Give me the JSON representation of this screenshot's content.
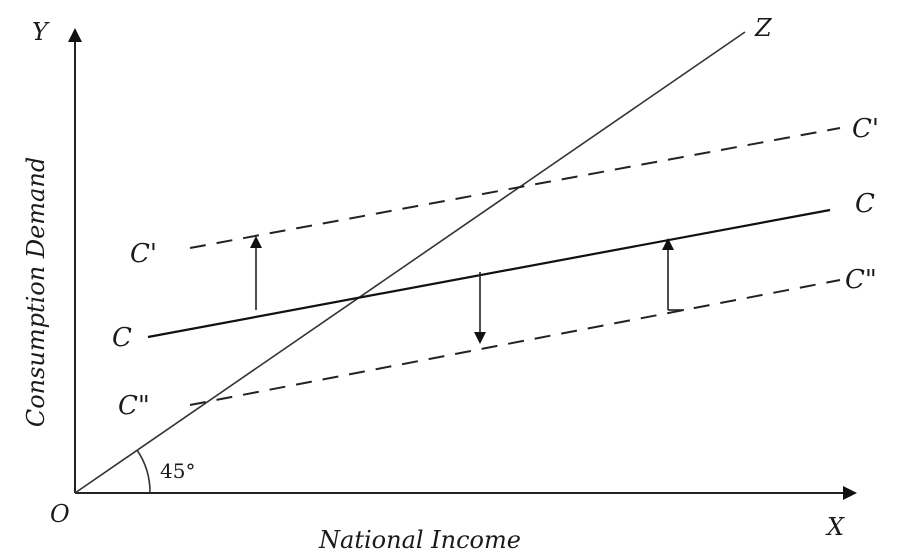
{
  "diagram": {
    "axes": {
      "origin": "O",
      "x_axis": "X",
      "y_axis": "Y",
      "x_title": "National Income",
      "y_title": "Consumption Demand"
    },
    "line_45": {
      "label": "Z",
      "angle": "45°"
    },
    "curves": {
      "upper": {
        "label_left": "C'",
        "label_right": "C'",
        "style": "dashed"
      },
      "middle": {
        "label_left": "C",
        "label_right": "C",
        "style": "solid"
      },
      "lower": {
        "label_left": "C\"",
        "label_right": "C\"",
        "style": "dashed"
      }
    }
  }
}
